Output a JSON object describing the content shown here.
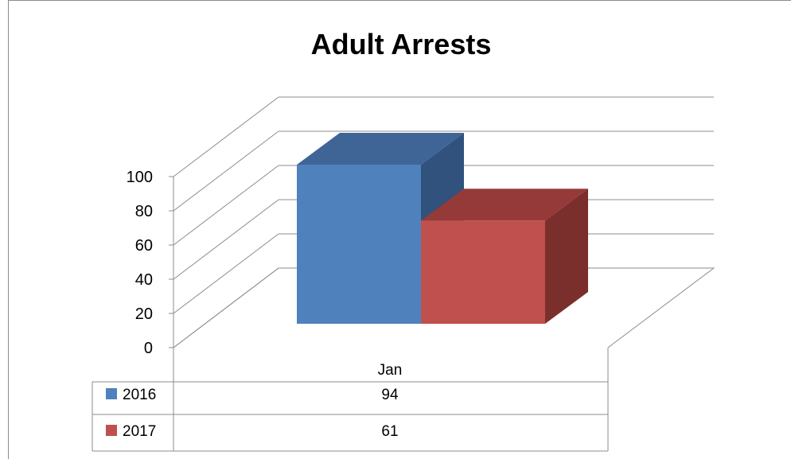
{
  "chart_data": {
    "type": "bar",
    "title": "Adult Arrests",
    "categories": [
      "Jan"
    ],
    "series": [
      {
        "name": "2016",
        "values": [
          94
        ]
      },
      {
        "name": "2017",
        "values": [
          61
        ]
      }
    ],
    "ylim": [
      0,
      100
    ],
    "yticks": [
      "0",
      "20",
      "40",
      "60",
      "80",
      "100"
    ],
    "grid": true,
    "legend": "data-table",
    "colors": {
      "2016": {
        "front": "#4f81bd",
        "side": "#30527d",
        "top": "#3f6596"
      },
      "2017": {
        "front": "#c0504d",
        "side": "#7b2f2d",
        "top": "#953a38"
      }
    }
  }
}
